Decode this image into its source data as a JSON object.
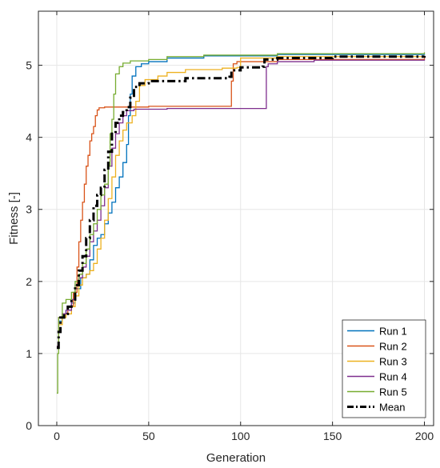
{
  "chart_data": {
    "type": "line",
    "xlabel": "Generation",
    "ylabel": "Fitness [-]",
    "xlim": [
      -10,
      205
    ],
    "ylim": [
      0,
      5.75
    ],
    "xticks": [
      0,
      50,
      100,
      150,
      200
    ],
    "yticks": [
      0,
      1,
      2,
      3,
      4,
      5
    ],
    "grid": true,
    "legend": "bottom-right",
    "series": [
      {
        "name": "Run 1",
        "color": "#0072BD",
        "style": "solid",
        "points": [
          [
            0,
            1.1
          ],
          [
            1,
            1.45
          ],
          [
            3,
            1.55
          ],
          [
            5,
            1.6
          ],
          [
            8,
            1.7
          ],
          [
            10,
            1.9
          ],
          [
            13,
            2.05
          ],
          [
            16,
            2.1
          ],
          [
            18,
            2.3
          ],
          [
            20,
            2.5
          ],
          [
            22,
            2.6
          ],
          [
            24,
            2.65
          ],
          [
            26,
            2.8
          ],
          [
            28,
            2.95
          ],
          [
            30,
            3.1
          ],
          [
            32,
            3.3
          ],
          [
            34,
            3.45
          ],
          [
            36,
            3.65
          ],
          [
            38,
            3.9
          ],
          [
            39,
            4.3
          ],
          [
            40,
            4.6
          ],
          [
            41,
            4.85
          ],
          [
            43,
            4.98
          ],
          [
            46,
            5.02
          ],
          [
            50,
            5.05
          ],
          [
            60,
            5.1
          ],
          [
            80,
            5.13
          ],
          [
            120,
            5.15
          ],
          [
            200,
            5.16
          ]
        ]
      },
      {
        "name": "Run 2",
        "color": "#D95319",
        "style": "solid",
        "points": [
          [
            0,
            1.1
          ],
          [
            1,
            1.5
          ],
          [
            3,
            1.55
          ],
          [
            6,
            1.65
          ],
          [
            9,
            1.85
          ],
          [
            11,
            2.2
          ],
          [
            12,
            2.55
          ],
          [
            13,
            2.85
          ],
          [
            14,
            3.1
          ],
          [
            15,
            3.35
          ],
          [
            16,
            3.6
          ],
          [
            17,
            3.75
          ],
          [
            18,
            3.95
          ],
          [
            19,
            4.05
          ],
          [
            20,
            4.15
          ],
          [
            21,
            4.3
          ],
          [
            22,
            4.38
          ],
          [
            23,
            4.41
          ],
          [
            26,
            4.42
          ],
          [
            50,
            4.43
          ],
          [
            94,
            4.43
          ],
          [
            95,
            4.78
          ],
          [
            96,
            5.02
          ],
          [
            98,
            5.05
          ],
          [
            120,
            5.08
          ],
          [
            200,
            5.1
          ]
        ]
      },
      {
        "name": "Run 3",
        "color": "#EDB120",
        "style": "solid",
        "points": [
          [
            0,
            1.1
          ],
          [
            1,
            1.4
          ],
          [
            3,
            1.5
          ],
          [
            5,
            1.55
          ],
          [
            8,
            1.65
          ],
          [
            10,
            1.8
          ],
          [
            12,
            1.95
          ],
          [
            14,
            2.05
          ],
          [
            16,
            2.1
          ],
          [
            18,
            2.15
          ],
          [
            20,
            2.25
          ],
          [
            22,
            2.45
          ],
          [
            24,
            2.6
          ],
          [
            26,
            2.85
          ],
          [
            28,
            3.15
          ],
          [
            30,
            3.45
          ],
          [
            32,
            3.75
          ],
          [
            34,
            3.95
          ],
          [
            36,
            4.1
          ],
          [
            38,
            4.2
          ],
          [
            41,
            4.3
          ],
          [
            43,
            4.5
          ],
          [
            45,
            4.72
          ],
          [
            48,
            4.8
          ],
          [
            55,
            4.85
          ],
          [
            60,
            4.9
          ],
          [
            70,
            4.94
          ],
          [
            90,
            4.96
          ],
          [
            98,
            4.97
          ],
          [
            100,
            5.1
          ],
          [
            120,
            5.12
          ],
          [
            200,
            5.13
          ]
        ]
      },
      {
        "name": "Run 4",
        "color": "#7E2F8E",
        "style": "solid",
        "points": [
          [
            0,
            1.1
          ],
          [
            1,
            1.5
          ],
          [
            3,
            1.55
          ],
          [
            5,
            1.6
          ],
          [
            8,
            1.75
          ],
          [
            10,
            1.95
          ],
          [
            12,
            2.05
          ],
          [
            14,
            2.2
          ],
          [
            16,
            2.35
          ],
          [
            18,
            2.55
          ],
          [
            20,
            2.7
          ],
          [
            22,
            2.85
          ],
          [
            24,
            3.05
          ],
          [
            26,
            3.3
          ],
          [
            28,
            3.6
          ],
          [
            30,
            3.85
          ],
          [
            32,
            4.05
          ],
          [
            34,
            4.2
          ],
          [
            36,
            4.3
          ],
          [
            38,
            4.37
          ],
          [
            42,
            4.39
          ],
          [
            60,
            4.4
          ],
          [
            110,
            4.4
          ],
          [
            113,
            4.4
          ],
          [
            114,
            4.98
          ],
          [
            115,
            5.02
          ],
          [
            120,
            5.05
          ],
          [
            140,
            5.07
          ],
          [
            200,
            5.08
          ]
        ]
      },
      {
        "name": "Run 5",
        "color": "#77AC30",
        "style": "solid",
        "points": [
          [
            0,
            0.45
          ],
          [
            0.5,
            1.0
          ],
          [
            1,
            1.5
          ],
          [
            3,
            1.7
          ],
          [
            5,
            1.75
          ],
          [
            8,
            1.85
          ],
          [
            10,
            2.0
          ],
          [
            12,
            2.1
          ],
          [
            14,
            2.25
          ],
          [
            16,
            2.45
          ],
          [
            18,
            2.65
          ],
          [
            20,
            2.8
          ],
          [
            22,
            3.0
          ],
          [
            24,
            3.2
          ],
          [
            26,
            3.35
          ],
          [
            28,
            3.6
          ],
          [
            29,
            4.05
          ],
          [
            30,
            4.25
          ],
          [
            31,
            4.6
          ],
          [
            32,
            4.88
          ],
          [
            34,
            4.98
          ],
          [
            36,
            5.03
          ],
          [
            40,
            5.06
          ],
          [
            50,
            5.08
          ],
          [
            60,
            5.12
          ],
          [
            80,
            5.14
          ],
          [
            120,
            5.16
          ],
          [
            200,
            5.18
          ]
        ]
      },
      {
        "name": "Mean",
        "color": "#000000",
        "style": "dashdot",
        "points": [
          [
            0,
            1.08
          ],
          [
            1,
            1.3
          ],
          [
            2,
            1.5
          ],
          [
            4,
            1.55
          ],
          [
            6,
            1.65
          ],
          [
            8,
            1.75
          ],
          [
            10,
            1.95
          ],
          [
            12,
            2.15
          ],
          [
            14,
            2.35
          ],
          [
            16,
            2.6
          ],
          [
            18,
            2.85
          ],
          [
            20,
            3.05
          ],
          [
            22,
            3.2
          ],
          [
            24,
            3.3
          ],
          [
            26,
            3.55
          ],
          [
            28,
            3.8
          ],
          [
            30,
            4.05
          ],
          [
            32,
            4.2
          ],
          [
            34,
            4.3
          ],
          [
            36,
            4.35
          ],
          [
            38,
            4.42
          ],
          [
            40,
            4.55
          ],
          [
            42,
            4.7
          ],
          [
            45,
            4.75
          ],
          [
            50,
            4.78
          ],
          [
            70,
            4.82
          ],
          [
            94,
            4.84
          ],
          [
            95,
            4.93
          ],
          [
            100,
            4.97
          ],
          [
            112,
            4.98
          ],
          [
            113,
            5.08
          ],
          [
            120,
            5.1
          ],
          [
            150,
            5.12
          ],
          [
            200,
            5.13
          ]
        ]
      }
    ]
  }
}
